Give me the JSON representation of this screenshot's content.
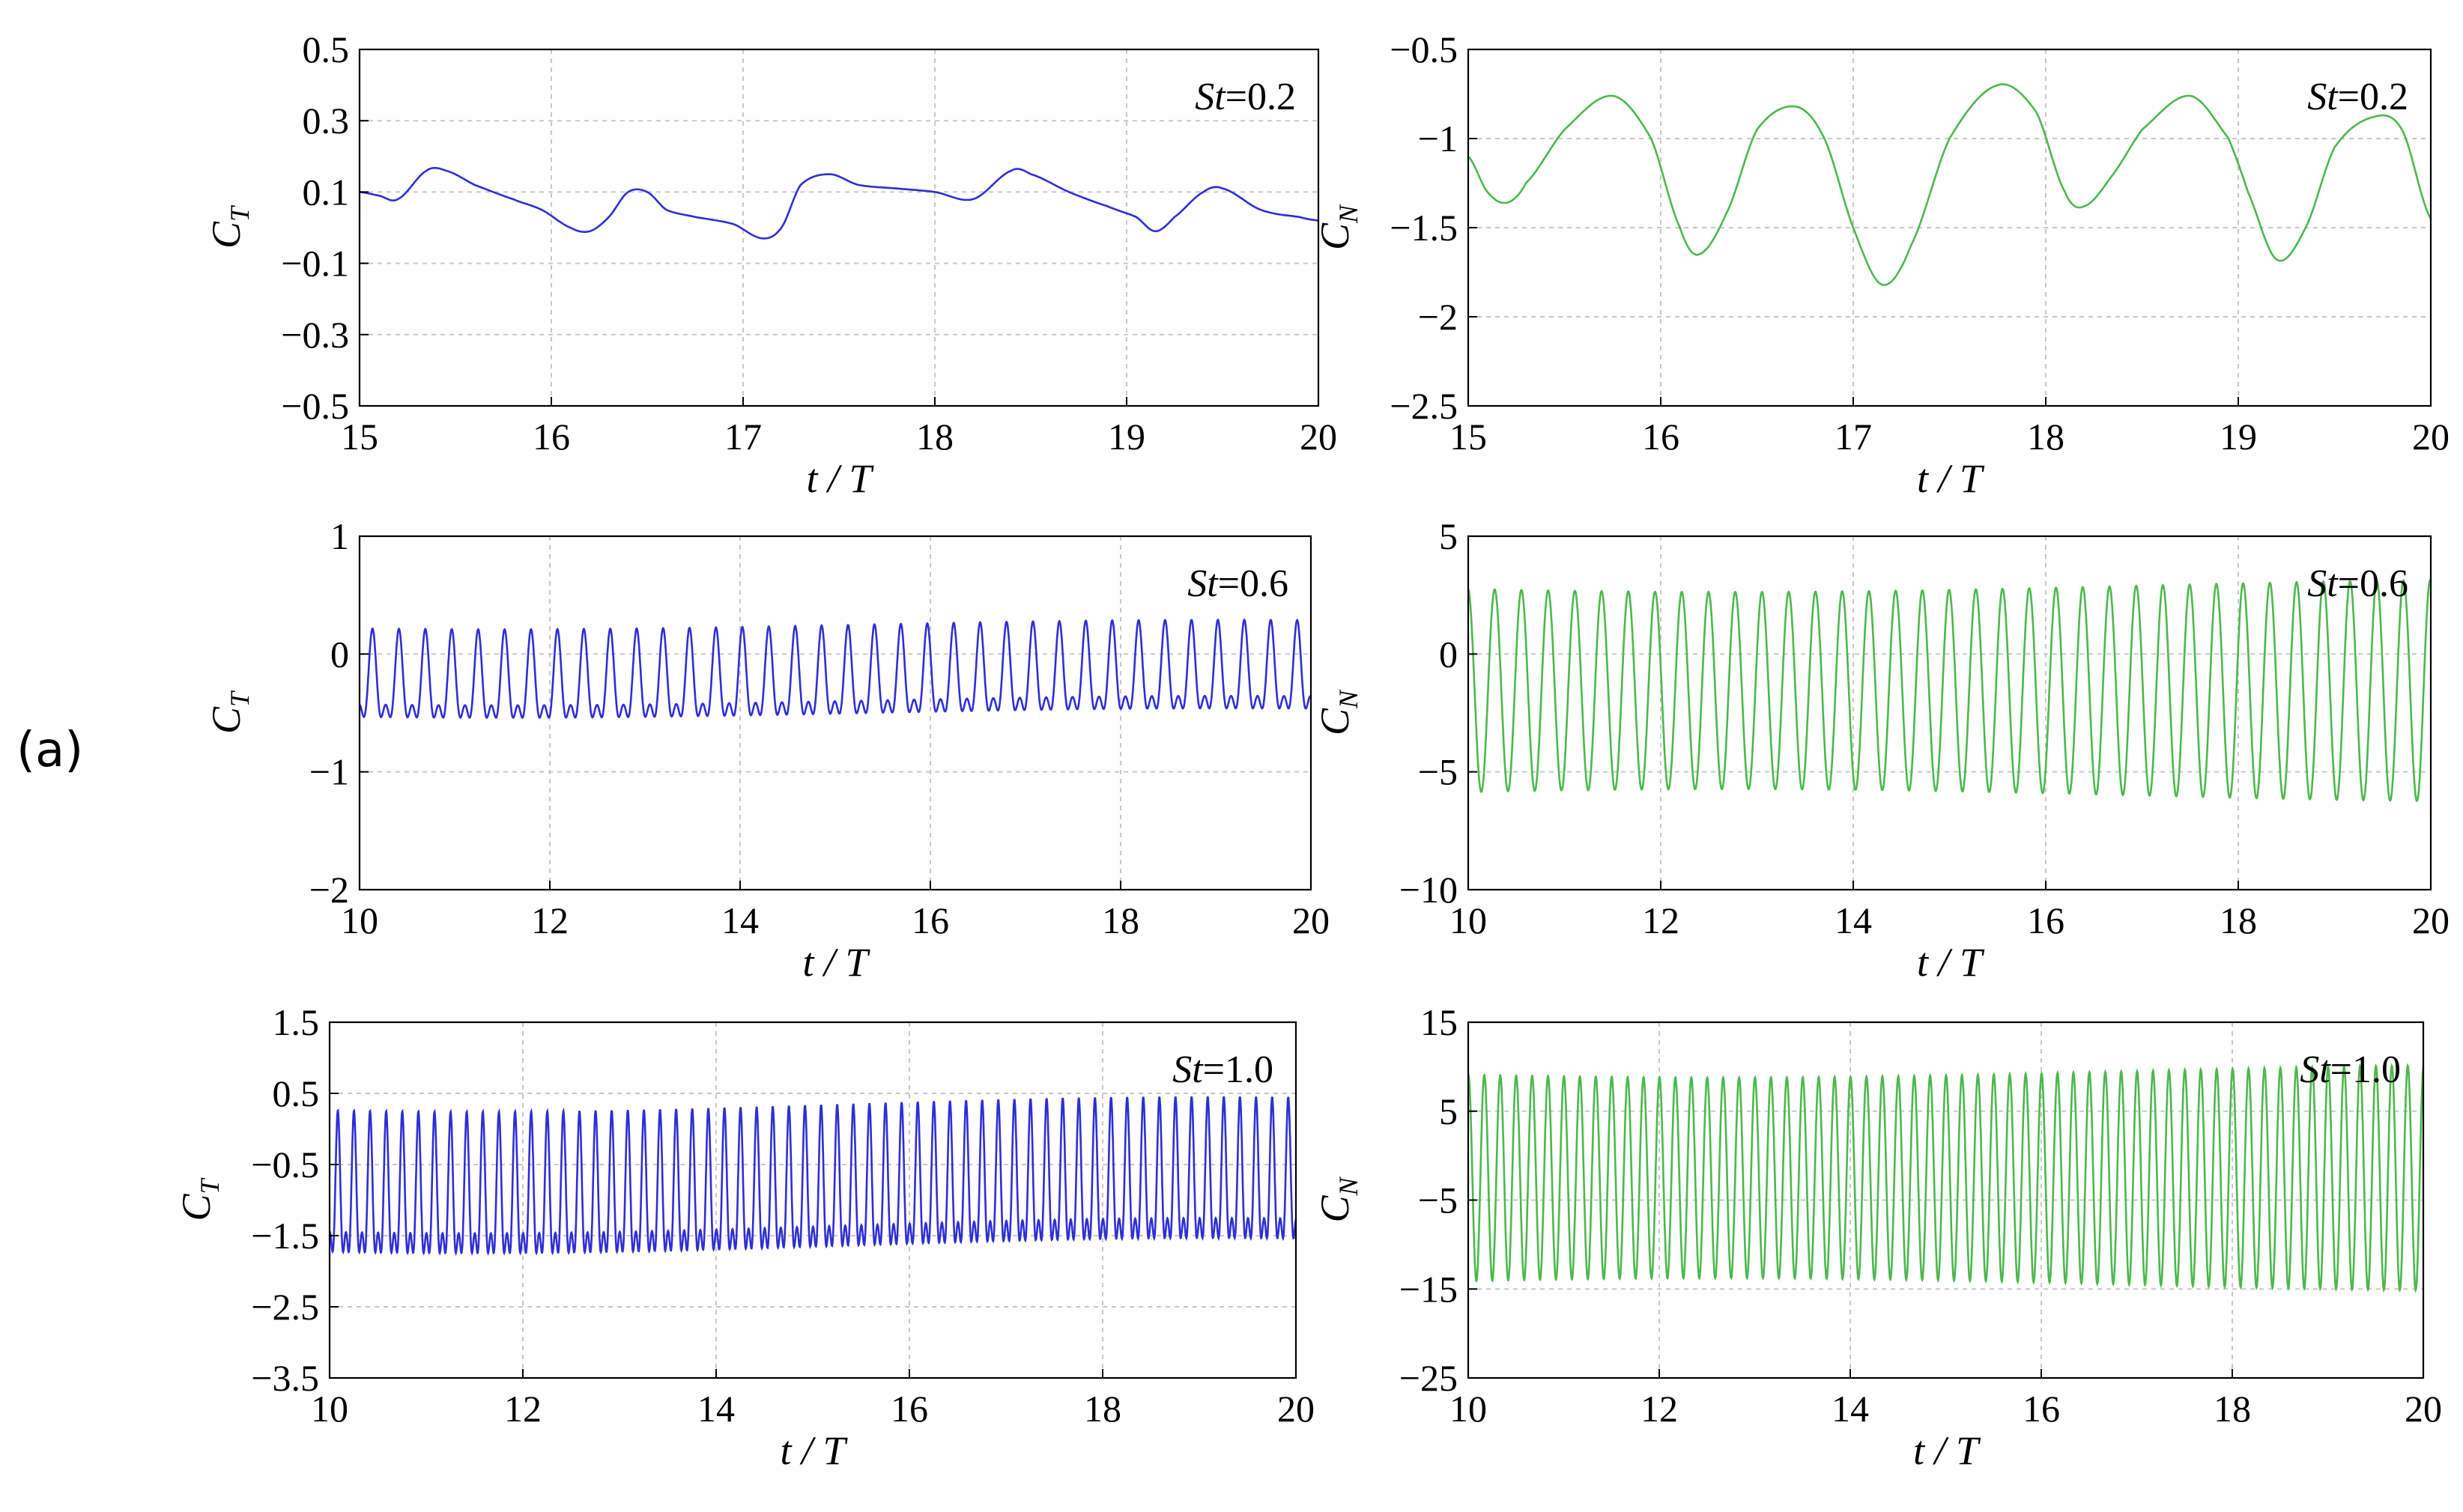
{
  "figure": {
    "panel_label": "(a)",
    "series_colors": {
      "thrust": "#2e2ed6",
      "normal": "#4cb84c"
    },
    "grid": true
  },
  "chart_data": [
    {
      "type": "line",
      "id": "ct_st02",
      "color": "#2e2ed6",
      "annotation": {
        "var": "St",
        "eq": "=0.2"
      },
      "ylabel_main": "C",
      "ylabel_sub": "T",
      "xlabel": "t / T",
      "xlim": [
        15,
        20
      ],
      "ylim": [
        -0.5,
        0.5
      ],
      "xticks": [
        15,
        16,
        17,
        18,
        19,
        20
      ],
      "yticks": [
        0.5,
        0.3,
        0.1,
        -0.1,
        -0.3,
        -0.5
      ],
      "ytick_labels": [
        "0.5",
        "0.3",
        "0.1",
        "−0.1",
        "−0.3",
        "−0.5"
      ],
      "x": [
        15.0,
        15.1,
        15.2,
        15.35,
        15.45,
        15.6,
        15.8,
        15.95,
        16.1,
        16.2,
        16.3,
        16.4,
        16.5,
        16.6,
        16.75,
        16.95,
        17.1,
        17.2,
        17.3,
        17.45,
        17.6,
        17.8,
        18.0,
        18.2,
        18.4,
        18.5,
        18.7,
        18.9,
        19.05,
        19.15,
        19.25,
        19.4,
        19.5,
        19.7,
        19.9,
        20.0
      ],
      "y": [
        0.1,
        0.09,
        0.08,
        0.16,
        0.16,
        0.12,
        0.08,
        0.05,
        0.0,
        -0.01,
        0.03,
        0.1,
        0.1,
        0.05,
        0.03,
        0.01,
        -0.03,
        0.0,
        0.12,
        0.15,
        0.12,
        0.11,
        0.1,
        0.08,
        0.16,
        0.15,
        0.1,
        0.06,
        0.03,
        -0.01,
        0.03,
        0.1,
        0.11,
        0.05,
        0.03,
        0.02
      ]
    },
    {
      "type": "line",
      "id": "cn_st02",
      "color": "#4cb84c",
      "annotation": {
        "var": "St",
        "eq": "=0.2"
      },
      "ylabel_main": "C",
      "ylabel_sub": "N",
      "xlabel": "t / T",
      "xlim": [
        15,
        20
      ],
      "ylim": [
        -2.5,
        -0.5
      ],
      "xticks": [
        15,
        16,
        17,
        18,
        19,
        20
      ],
      "yticks": [
        -0.5,
        -1,
        -1.5,
        -2,
        -2.5
      ],
      "ytick_labels": [
        "−0.5",
        "−1",
        "−1.5",
        "−2",
        "−2.5"
      ],
      "x": [
        15.0,
        15.1,
        15.2,
        15.3,
        15.5,
        15.75,
        15.95,
        16.1,
        16.2,
        16.35,
        16.5,
        16.7,
        16.85,
        17.0,
        17.15,
        17.3,
        17.5,
        17.75,
        17.95,
        18.1,
        18.2,
        18.35,
        18.5,
        18.75,
        18.95,
        19.05,
        19.2,
        19.35,
        19.5,
        19.7,
        19.85,
        20.0
      ],
      "y": [
        -1.1,
        -1.3,
        -1.36,
        -1.25,
        -0.95,
        -0.76,
        -1.0,
        -1.5,
        -1.65,
        -1.4,
        -0.95,
        -0.82,
        -1.0,
        -1.5,
        -1.82,
        -1.6,
        -1.0,
        -0.7,
        -0.85,
        -1.3,
        -1.38,
        -1.2,
        -0.95,
        -0.76,
        -1.0,
        -1.3,
        -1.68,
        -1.5,
        -1.05,
        -0.88,
        -0.95,
        -1.45
      ]
    },
    {
      "type": "line",
      "id": "ct_st06",
      "color": "#2e2ed6",
      "annotation": {
        "var": "St",
        "eq": "=0.6"
      },
      "ylabel_main": "C",
      "ylabel_sub": "T",
      "xlabel": "t / T",
      "xlim": [
        10,
        20
      ],
      "ylim": [
        -2,
        1
      ],
      "xticks": [
        10,
        12,
        14,
        16,
        18,
        20
      ],
      "yticks": [
        1,
        0,
        -1,
        -2
      ],
      "ytick_labels": [
        "1",
        "0",
        "−1",
        "−2"
      ],
      "oscillation": {
        "period": 0.2777,
        "shape": "double-peak",
        "max": 0.25,
        "min": -0.75,
        "secondary_min": -0.2
      }
    },
    {
      "type": "line",
      "id": "cn_st06",
      "color": "#4cb84c",
      "annotation": {
        "var": "St",
        "eq": "=0.6"
      },
      "ylabel_main": "C",
      "ylabel_sub": "N",
      "xlabel": "t / T",
      "xlim": [
        10,
        20
      ],
      "ylim": [
        -10,
        5
      ],
      "xticks": [
        10,
        12,
        14,
        16,
        18,
        20
      ],
      "yticks": [
        5,
        0,
        -5,
        -10
      ],
      "ytick_labels": [
        "5",
        "0",
        "−5",
        "−10"
      ],
      "oscillation": {
        "period": 0.2777,
        "shape": "sine",
        "max": 2.9,
        "min": -6.0
      }
    },
    {
      "type": "line",
      "id": "ct_st10",
      "color": "#2e2ed6",
      "annotation": {
        "var": "St",
        "eq": "=1.0"
      },
      "ylabel_main": "C",
      "ylabel_sub": "T",
      "xlabel": "t / T",
      "xlim": [
        10,
        20
      ],
      "ylim": [
        -3.5,
        1.5
      ],
      "xticks": [
        10,
        12,
        14,
        16,
        18,
        20
      ],
      "yticks": [
        1.5,
        0.5,
        -0.5,
        -1.5,
        -2.5,
        -3.5
      ],
      "ytick_labels": [
        "1.5",
        "0.5",
        "−0.5",
        "−1.5",
        "−2.5",
        "−3.5"
      ],
      "oscillation": {
        "period": 0.1667,
        "shape": "double-peak",
        "max": 0.35,
        "min": -2.3,
        "secondary_min": -1.0
      }
    },
    {
      "type": "line",
      "id": "cn_st10",
      "color": "#4cb84c",
      "annotation": {
        "var": "St",
        "eq": "=1.0"
      },
      "ylabel_main": "C",
      "ylabel_sub": "N",
      "xlabel": "t / T",
      "xlim": [
        10,
        20
      ],
      "ylim": [
        -25,
        15
      ],
      "xticks": [
        10,
        12,
        14,
        16,
        18,
        20
      ],
      "yticks": [
        15,
        5,
        -5,
        -15,
        -25
      ],
      "ytick_labels": [
        "15",
        "5",
        "−5",
        "−15",
        "−25"
      ],
      "oscillation": {
        "period": 0.1667,
        "shape": "sine",
        "max": 9.5,
        "min": -14.5
      }
    }
  ]
}
